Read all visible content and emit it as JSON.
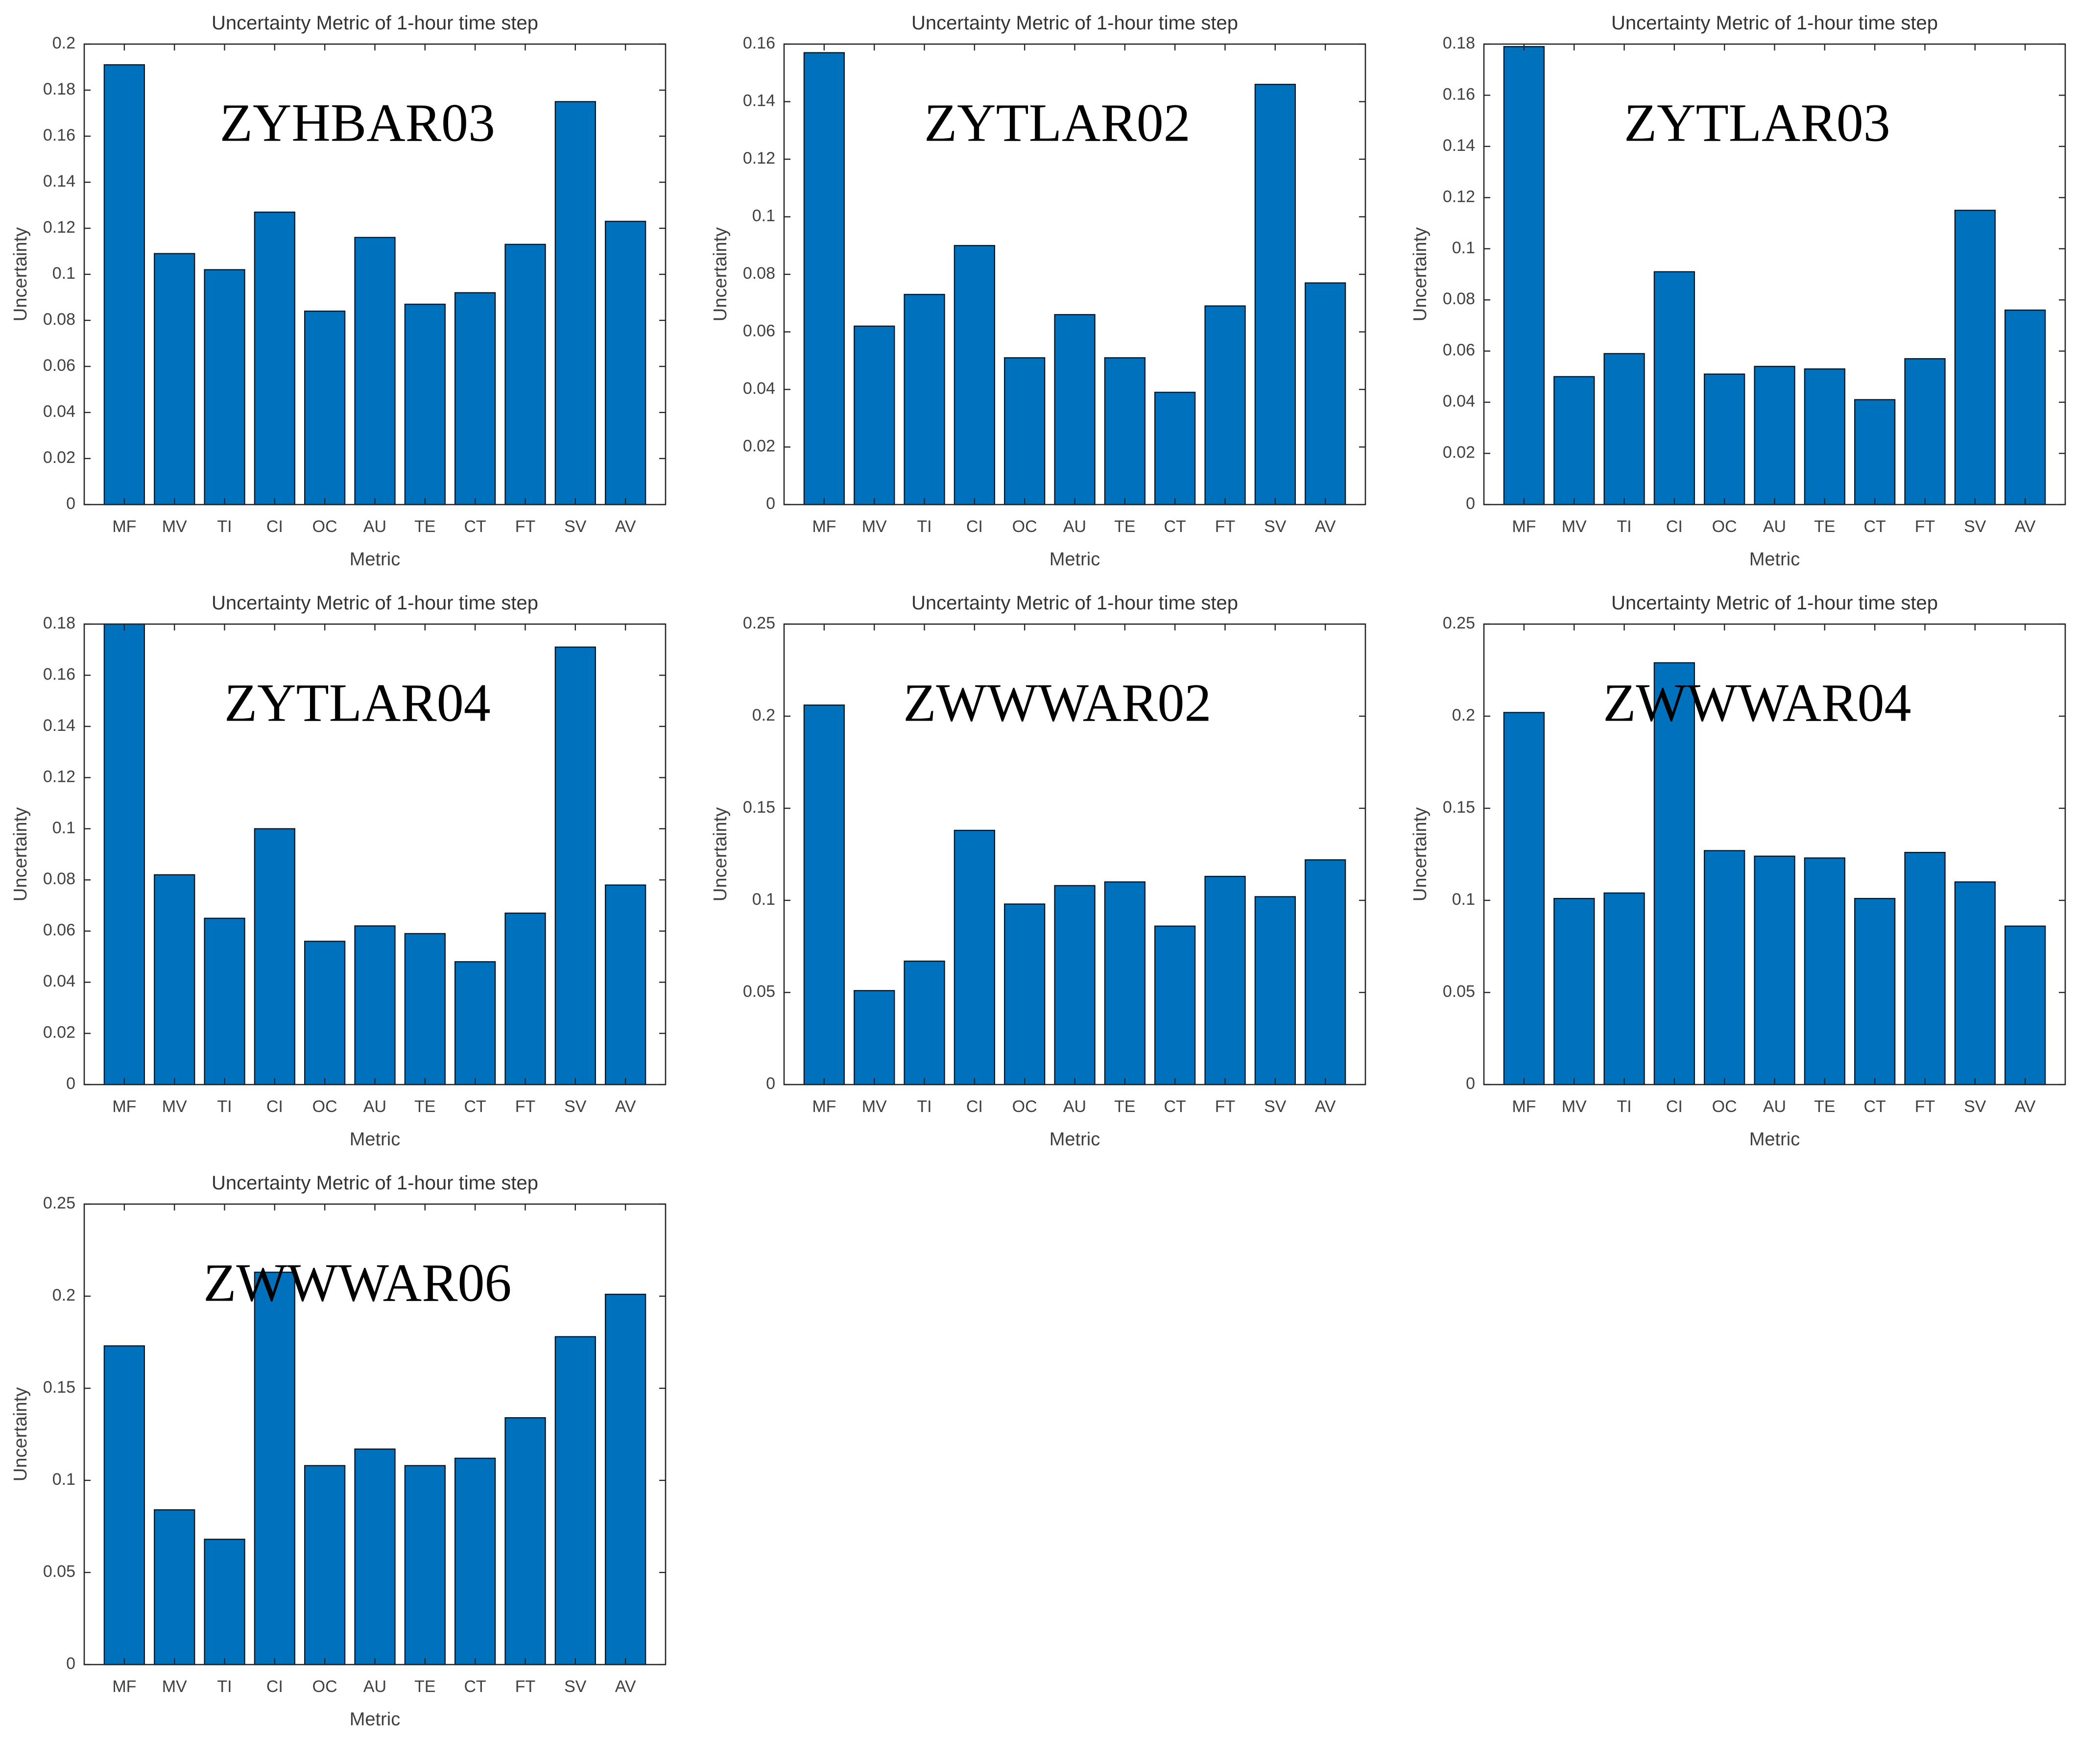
{
  "figure": {
    "background": "#ffffff",
    "grid_columns": 3
  },
  "colors": {
    "bar_fill": "#0072BD",
    "bar_edge": "#0b1724",
    "axis": "#262626",
    "tick_text": "#404040",
    "title_text": "#333333",
    "station_text": "#000000"
  },
  "chart_data": [
    {
      "type": "bar",
      "station": "ZYHBAR03",
      "title": "Uncertainty Metric of 1-hour time step",
      "xlabel": "Metric",
      "ylabel": "Uncertainty",
      "categories": [
        "MF",
        "MV",
        "TI",
        "CI",
        "OC",
        "AU",
        "TE",
        "CT",
        "FT",
        "SV",
        "AV"
      ],
      "values": [
        0.191,
        0.109,
        0.102,
        0.127,
        0.084,
        0.116,
        0.087,
        0.092,
        0.113,
        0.175,
        0.123
      ],
      "ylim": [
        0,
        0.2
      ],
      "ytick_step": 0.02,
      "grid": false,
      "legend": null
    },
    {
      "type": "bar",
      "station": "ZYTLAR02",
      "title": "Uncertainty Metric of 1-hour time step",
      "xlabel": "Metric",
      "ylabel": "Uncertainty",
      "categories": [
        "MF",
        "MV",
        "TI",
        "CI",
        "OC",
        "AU",
        "TE",
        "CT",
        "FT",
        "SV",
        "AV"
      ],
      "values": [
        0.157,
        0.062,
        0.073,
        0.09,
        0.051,
        0.066,
        0.051,
        0.039,
        0.069,
        0.146,
        0.077
      ],
      "ylim": [
        0,
        0.16
      ],
      "ytick_step": 0.02,
      "grid": false,
      "legend": null
    },
    {
      "type": "bar",
      "station": "ZYTLAR03",
      "title": "Uncertainty Metric of 1-hour time step",
      "xlabel": "Metric",
      "ylabel": "Uncertainty",
      "categories": [
        "MF",
        "MV",
        "TI",
        "CI",
        "OC",
        "AU",
        "TE",
        "CT",
        "FT",
        "SV",
        "AV"
      ],
      "values": [
        0.179,
        0.05,
        0.059,
        0.091,
        0.051,
        0.054,
        0.053,
        0.041,
        0.057,
        0.115,
        0.076
      ],
      "ylim": [
        0,
        0.18
      ],
      "ytick_step": 0.02,
      "grid": false,
      "legend": null
    },
    {
      "type": "bar",
      "station": "ZYTLAR04",
      "title": "Uncertainty Metric of 1-hour time step",
      "xlabel": "Metric",
      "ylabel": "Uncertainty",
      "categories": [
        "MF",
        "MV",
        "TI",
        "CI",
        "OC",
        "AU",
        "TE",
        "CT",
        "FT",
        "SV",
        "AV"
      ],
      "values": [
        0.18,
        0.082,
        0.065,
        0.1,
        0.056,
        0.062,
        0.059,
        0.048,
        0.067,
        0.171,
        0.078
      ],
      "ylim": [
        0,
        0.18
      ],
      "ytick_step": 0.02,
      "grid": false,
      "legend": null
    },
    {
      "type": "bar",
      "station": "ZWWWAR02",
      "title": "Uncertainty Metric of 1-hour time step",
      "xlabel": "Metric",
      "ylabel": "Uncertainty",
      "categories": [
        "MF",
        "MV",
        "TI",
        "CI",
        "OC",
        "AU",
        "TE",
        "CT",
        "FT",
        "SV",
        "AV"
      ],
      "values": [
        0.206,
        0.051,
        0.067,
        0.138,
        0.098,
        0.108,
        0.11,
        0.086,
        0.113,
        0.102,
        0.122
      ],
      "ylim": [
        0,
        0.25
      ],
      "ytick_step": 0.05,
      "grid": false,
      "legend": null
    },
    {
      "type": "bar",
      "station": "ZWWWAR04",
      "title": "Uncertainty Metric of 1-hour time step",
      "xlabel": "Metric",
      "ylabel": "Uncertainty",
      "categories": [
        "MF",
        "MV",
        "TI",
        "CI",
        "OC",
        "AU",
        "TE",
        "CT",
        "FT",
        "SV",
        "AV"
      ],
      "values": [
        0.202,
        0.101,
        0.104,
        0.229,
        0.127,
        0.124,
        0.123,
        0.101,
        0.126,
        0.11,
        0.086
      ],
      "ylim": [
        0,
        0.25
      ],
      "ytick_step": 0.05,
      "grid": false,
      "legend": null
    },
    {
      "type": "bar",
      "station": "ZWWWAR06",
      "title": "Uncertainty Metric of 1-hour time step",
      "xlabel": "Metric",
      "ylabel": "Uncertainty",
      "categories": [
        "MF",
        "MV",
        "TI",
        "CI",
        "OC",
        "AU",
        "TE",
        "CT",
        "FT",
        "SV",
        "AV"
      ],
      "values": [
        0.173,
        0.084,
        0.068,
        0.213,
        0.108,
        0.117,
        0.108,
        0.112,
        0.134,
        0.178,
        0.201
      ],
      "ylim": [
        0,
        0.25
      ],
      "ytick_step": 0.05,
      "grid": false,
      "legend": null
    }
  ]
}
